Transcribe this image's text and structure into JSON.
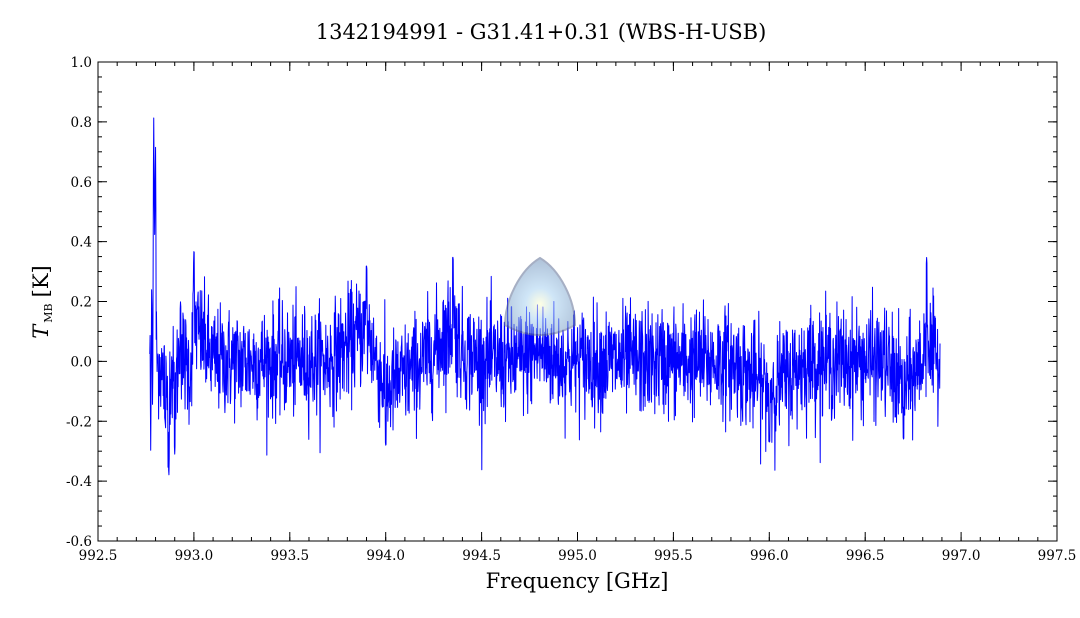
{
  "chart_data": {
    "type": "line",
    "title": "1342194991 - G31.41+0.31 (WBS-H-USB)",
    "xlabel": "Frequency [GHz]",
    "ylabel": {
      "symbol": "T",
      "subscript": "MB",
      "unit": "[K]"
    },
    "xlim": [
      992.5,
      997.5
    ],
    "ylim": [
      -0.6,
      1.0
    ],
    "x_ticks": [
      992.5,
      993.0,
      993.5,
      994.0,
      994.5,
      995.0,
      995.5,
      996.0,
      996.5,
      997.0,
      997.5
    ],
    "x_tick_labels": [
      "992.5",
      "993.0",
      "993.5",
      "994.0",
      "994.5",
      "995.0",
      "995.5",
      "996.0",
      "996.5",
      "997.0",
      "997.5"
    ],
    "y_ticks": [
      -0.6,
      -0.4,
      -0.2,
      0.0,
      0.2,
      0.4,
      0.6,
      0.8,
      1.0
    ],
    "y_tick_labels": [
      "-0.6",
      "-0.4",
      "-0.2",
      "0.0",
      "0.2",
      "0.4",
      "0.6",
      "0.8",
      "1.0"
    ],
    "grid": false,
    "series": [
      {
        "color": "#0000ff",
        "x_range": [
          992.77,
          996.89
        ],
        "x": [
          992.77,
          992.775,
          992.78,
          992.785,
          992.79,
          992.795,
          992.8,
          992.805,
          992.81,
          992.82,
          992.83,
          992.85,
          992.87,
          992.88,
          992.9,
          992.93,
          992.95,
          992.98,
          993.0,
          993.1,
          993.3,
          993.5,
          993.7,
          993.9,
          994.0,
          994.2,
          994.3,
          994.35,
          994.4,
          994.5,
          994.6,
          994.7,
          994.8,
          994.9,
          995.0,
          995.2,
          995.4,
          995.6,
          995.8,
          996.0,
          996.2,
          996.4,
          996.5,
          996.6,
          996.7,
          996.8,
          996.82,
          996.85,
          996.89
        ],
        "y": [
          0.15,
          -0.32,
          0.3,
          -0.22,
          0.87,
          0.4,
          0.73,
          0.1,
          -0.05,
          0.0,
          -0.1,
          -0.2,
          -0.38,
          0.0,
          -0.31,
          0.2,
          0.0,
          -0.1,
          0.37,
          0.0,
          0.0,
          0.0,
          0.0,
          0.32,
          -0.28,
          0.0,
          0.2,
          0.35,
          0.1,
          0.0,
          0.0,
          0.0,
          0.1,
          0.0,
          0.0,
          0.0,
          0.0,
          0.0,
          0.0,
          -0.27,
          0.0,
          0.0,
          0.0,
          0.0,
          -0.26,
          0.0,
          0.35,
          0.0,
          0.03
        ],
        "noise_rms": 0.09
      }
    ]
  }
}
